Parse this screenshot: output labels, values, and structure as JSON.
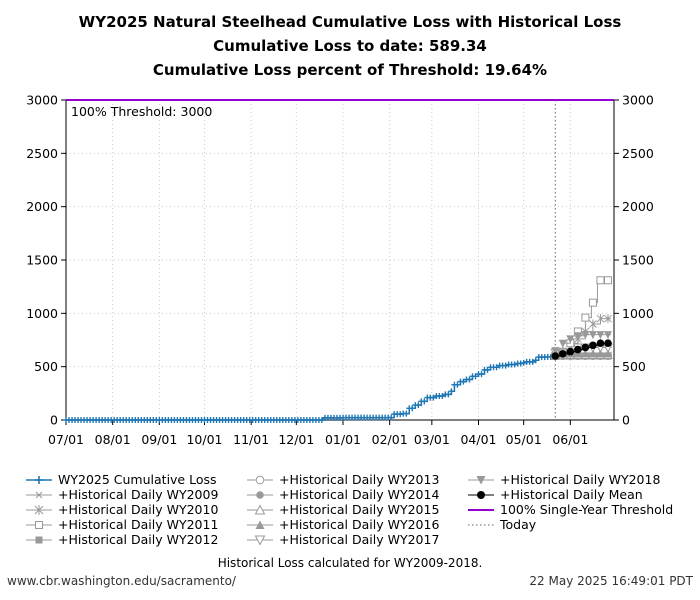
{
  "titles": {
    "line1": "WY2025 Natural Steelhead Cumulative Loss with Historical Loss",
    "line2": "Cumulative Loss to date: 589.34",
    "line3": "Cumulative Loss percent of Threshold: 19.64%"
  },
  "footer": {
    "note": "Historical Loss calculated for WY2009-2018.",
    "site": "www.cbr.washington.edu/sacramento/",
    "timestamp": "22 May 2025 16:49:01 PDT"
  },
  "colors": {
    "wy2025": "#1f77b4",
    "historical": "#999999",
    "mean": "#000000",
    "threshold": "#9400d3",
    "today": "#666666"
  },
  "chart_data": {
    "type": "line",
    "ylim": [
      0,
      3000
    ],
    "y_ticks": [
      0,
      500,
      1000,
      1500,
      2000,
      2500,
      3000
    ],
    "x_tick_labels": [
      "07/01",
      "08/01",
      "09/01",
      "10/01",
      "11/01",
      "12/01",
      "01/01",
      "02/01",
      "03/01",
      "04/01",
      "05/01",
      "06/01"
    ],
    "x_tick_days": [
      0,
      31,
      62,
      92,
      123,
      153,
      184,
      215,
      243,
      274,
      304,
      335
    ],
    "x_max_day": 364,
    "today_day": 325,
    "threshold": {
      "value": 3000,
      "label": "100% Threshold: 3000"
    },
    "grid": true,
    "legend_position": "below",
    "wy2025_series": {
      "name": "WY2025 Cumulative Loss",
      "points": [
        [
          0,
          0
        ],
        [
          170,
          0
        ],
        [
          171,
          20
        ],
        [
          184,
          22
        ],
        [
          214,
          22
        ],
        [
          218,
          55
        ],
        [
          224,
          60
        ],
        [
          228,
          110
        ],
        [
          232,
          140
        ],
        [
          236,
          175
        ],
        [
          240,
          210
        ],
        [
          246,
          225
        ],
        [
          252,
          240
        ],
        [
          256,
          270
        ],
        [
          258,
          330
        ],
        [
          262,
          360
        ],
        [
          266,
          380
        ],
        [
          270,
          410
        ],
        [
          274,
          430
        ],
        [
          278,
          470
        ],
        [
          282,
          495
        ],
        [
          288,
          510
        ],
        [
          294,
          520
        ],
        [
          300,
          530
        ],
        [
          304,
          535
        ],
        [
          306,
          545
        ],
        [
          312,
          560
        ],
        [
          314,
          590
        ],
        [
          320,
          592
        ],
        [
          325,
          589.34
        ]
      ]
    },
    "historical_series": [
      {
        "name": "+Historical Daily WY2009",
        "marker": "x",
        "points": [
          [
            325,
            600
          ],
          [
            362,
            600
          ]
        ]
      },
      {
        "name": "+Historical Daily WY2010",
        "marker": "asterisk",
        "points": [
          [
            325,
            600
          ],
          [
            330,
            620
          ],
          [
            335,
            690
          ],
          [
            340,
            760
          ],
          [
            345,
            830
          ],
          [
            350,
            900
          ],
          [
            355,
            950
          ],
          [
            362,
            950
          ]
        ]
      },
      {
        "name": "+Historical Daily WY2011",
        "marker": "square-open",
        "points": [
          [
            325,
            600
          ],
          [
            330,
            640
          ],
          [
            335,
            720
          ],
          [
            340,
            830
          ],
          [
            345,
            960
          ],
          [
            349,
            1100
          ],
          [
            353,
            1310
          ],
          [
            362,
            1310
          ]
        ]
      },
      {
        "name": "+Historical Daily WY2012",
        "marker": "square-filled",
        "points": [
          [
            325,
            600
          ],
          [
            362,
            605
          ]
        ]
      },
      {
        "name": "+Historical Daily WY2013",
        "marker": "circle-open",
        "points": [
          [
            325,
            600
          ],
          [
            362,
            610
          ]
        ]
      },
      {
        "name": "+Historical Daily WY2014",
        "marker": "circle-filled",
        "points": [
          [
            325,
            605
          ],
          [
            362,
            615
          ]
        ]
      },
      {
        "name": "+Historical Daily WY2015",
        "marker": "triangle-up-open",
        "points": [
          [
            325,
            610
          ],
          [
            362,
            625
          ]
        ]
      },
      {
        "name": "+Historical Daily WY2016",
        "marker": "triangle-up-filled",
        "points": [
          [
            325,
            620
          ],
          [
            362,
            640
          ]
        ]
      },
      {
        "name": "+Historical Daily WY2017",
        "marker": "triangle-down-open",
        "points": [
          [
            325,
            630
          ],
          [
            340,
            680
          ],
          [
            362,
            720
          ]
        ]
      },
      {
        "name": "+Historical Daily WY2018",
        "marker": "triangle-down-filled",
        "points": [
          [
            325,
            650
          ],
          [
            330,
            720
          ],
          [
            335,
            760
          ],
          [
            340,
            790
          ],
          [
            345,
            800
          ],
          [
            362,
            800
          ]
        ]
      }
    ],
    "mean_series": {
      "name": "+Historical Daily Mean",
      "points": [
        [
          325,
          600
        ],
        [
          330,
          620
        ],
        [
          335,
          640
        ],
        [
          340,
          660
        ],
        [
          345,
          680
        ],
        [
          350,
          700
        ],
        [
          355,
          720
        ],
        [
          362,
          730
        ]
      ]
    },
    "threshold_legend": "100% Single-Year Threshold",
    "today_legend": "Today"
  }
}
